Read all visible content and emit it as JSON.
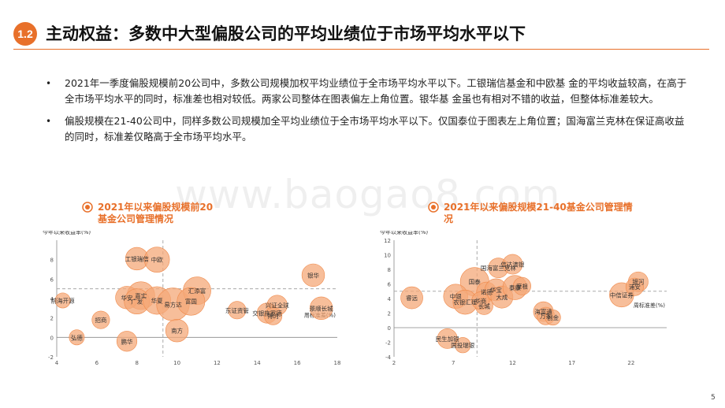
{
  "header": {
    "section_number": "1.2",
    "title": "主动权益：多数中大型偏股公司的平均业绩位于市场平均水平以下"
  },
  "bullets": [
    {
      "marker": "•",
      "text": "2021年一季度偏股规模前20公司中，多数公司规模加权平均业绩位于全市场平均水平以下。工银瑞信基金和中欧基  金的平均收益较高，在高于全市场平均水平的同时，标准差也相对较低。两家公司整体在图表偏左上角位置。银华基  金虽也有相对不错的收益，但整体标准差较大。"
    },
    {
      "marker": "•",
      "text": "偏股规模在21-40公司中，同样多数公司规模加全平均业绩位于全市场平均水平以下。仅国泰位于图表左上角位置；国海富兰克林在保证高收益的同时，标准差仅略高于全市场平均水平。"
    }
  ],
  "watermark": "www.baogao8.com",
  "page_number": "5",
  "colors": {
    "accent": "#E8702A",
    "bubble": "#F4A878",
    "text": "#222222",
    "grid": "#CCCCCC"
  },
  "chart_data": [
    {
      "type": "scatter",
      "title": "2021年以来偏股规模前20基金公司管理情况",
      "ylabel": "今年以来收益率(%)",
      "xlabel": "周标准差(%)",
      "xlim": [
        4,
        18
      ],
      "ylim": [
        -2,
        10
      ],
      "xticks": [
        4,
        6,
        8,
        10,
        12,
        14,
        16,
        18
      ],
      "yticks": [
        -2,
        0,
        2,
        4,
        6,
        8
      ],
      "xtick_labels": [
        "4",
        "6",
        "8",
        "10",
        "12",
        "14",
        "16",
        "18"
      ],
      "ytick_labels": [
        "-2",
        "0",
        "2",
        "4",
        "6",
        "8"
      ],
      "avg_x": 9.3,
      "avg_y": 5.0,
      "points": [
        {
          "name": "工银瑞信",
          "x": 8.0,
          "y": 8.1,
          "r": 0.9
        },
        {
          "name": "中欧",
          "x": 9.0,
          "y": 8.0,
          "r": 1.0
        },
        {
          "name": "前海开源",
          "x": 4.3,
          "y": 3.8,
          "r": 0.6
        },
        {
          "name": "嘉实",
          "x": 8.2,
          "y": 4.3,
          "r": 1.1
        },
        {
          "name": "华安",
          "x": 7.5,
          "y": 4.1,
          "r": 0.9
        },
        {
          "name": "广发",
          "x": 8.0,
          "y": 3.7,
          "r": 1.0
        },
        {
          "name": "华夏",
          "x": 9.0,
          "y": 3.8,
          "r": 1.1
        },
        {
          "name": "易方达",
          "x": 9.8,
          "y": 3.4,
          "r": 1.3
        },
        {
          "name": "汇添富",
          "x": 11.0,
          "y": 4.8,
          "r": 1.1
        },
        {
          "name": "富国",
          "x": 10.7,
          "y": 3.7,
          "r": 1.1
        },
        {
          "name": "招商",
          "x": 6.2,
          "y": 1.8,
          "r": 0.7
        },
        {
          "name": "弘德",
          "x": 5.0,
          "y": 0.0,
          "r": 0.6
        },
        {
          "name": "鹏华",
          "x": 7.5,
          "y": -0.4,
          "r": 0.8
        },
        {
          "name": "南方",
          "x": 10.0,
          "y": 0.7,
          "r": 0.9
        },
        {
          "name": "东证资管",
          "x": 13.0,
          "y": 2.8,
          "r": 0.7
        },
        {
          "name": "兴证全球",
          "x": 15.0,
          "y": 3.3,
          "r": 0.8
        },
        {
          "name": "交银施罗德",
          "x": 14.5,
          "y": 2.5,
          "r": 0.8
        },
        {
          "name": "博时",
          "x": 14.8,
          "y": 2.2,
          "r": 0.7
        },
        {
          "name": "银华",
          "x": 16.8,
          "y": 6.4,
          "r": 0.9
        },
        {
          "name": "景顺长城",
          "x": 17.2,
          "y": 3.0,
          "r": 0.9
        }
      ]
    },
    {
      "type": "scatter",
      "title": "2021年以来偏股规模21-40基金公司管理情况",
      "ylabel": "今年以来收益率(%)",
      "xlabel": "周标准差(%)",
      "xlim": [
        2,
        25
      ],
      "ylim": [
        -4,
        12
      ],
      "xticks": [
        2,
        7,
        12,
        17,
        22
      ],
      "yticks": [
        -4,
        -2,
        0,
        2,
        4,
        6,
        8,
        10,
        12
      ],
      "xtick_labels": [
        "2",
        "7",
        "12",
        "17",
        "22"
      ],
      "ytick_labels": [
        "-4",
        "-2",
        "0",
        "2",
        "4",
        "6",
        "8",
        "10",
        "12"
      ],
      "avg_x": 9.0,
      "avg_y": 5.0,
      "points": [
        {
          "name": "睿远",
          "x": 3.5,
          "y": 4.1,
          "r": 1.0
        },
        {
          "name": "国海富兰克林",
          "x": 10.8,
          "y": 8.2,
          "r": 0.9
        },
        {
          "name": "信达澳银",
          "x": 12.0,
          "y": 8.7,
          "r": 0.9
        },
        {
          "name": "国泰",
          "x": 8.8,
          "y": 6.3,
          "r": 1.3
        },
        {
          "name": "中银",
          "x": 7.2,
          "y": 4.3,
          "r": 1.1
        },
        {
          "name": "农银汇理",
          "x": 8.0,
          "y": 3.5,
          "r": 1.1
        },
        {
          "name": "诺德",
          "x": 9.8,
          "y": 4.9,
          "r": 0.9
        },
        {
          "name": "华宝",
          "x": 10.6,
          "y": 5.2,
          "r": 1.0
        },
        {
          "name": "大成",
          "x": 11.1,
          "y": 4.2,
          "r": 1.0
        },
        {
          "name": "长城",
          "x": 9.6,
          "y": 3.0,
          "r": 0.8
        },
        {
          "name": "华商",
          "x": 9.3,
          "y": 3.7,
          "r": 0.8
        },
        {
          "name": "泰康",
          "x": 12.2,
          "y": 5.5,
          "r": 1.1
        },
        {
          "name": "摩根",
          "x": 12.8,
          "y": 5.7,
          "r": 0.8
        },
        {
          "name": "海富通",
          "x": 14.6,
          "y": 2.2,
          "r": 0.9
        },
        {
          "name": "万家",
          "x": 14.8,
          "y": 1.6,
          "r": 0.8
        },
        {
          "name": "创金",
          "x": 15.4,
          "y": 1.4,
          "r": 0.7
        },
        {
          "name": "民生加银",
          "x": 6.5,
          "y": -1.5,
          "r": 0.9
        },
        {
          "name": "国投瑞银",
          "x": 7.8,
          "y": -2.4,
          "r": 0.7
        },
        {
          "name": "中信证券",
          "x": 21.2,
          "y": 4.5,
          "r": 1.1
        },
        {
          "name": "银河",
          "x": 22.6,
          "y": 6.3,
          "r": 0.9
        },
        {
          "name": "浦安",
          "x": 22.3,
          "y": 5.6,
          "r": 0.8
        }
      ]
    }
  ]
}
